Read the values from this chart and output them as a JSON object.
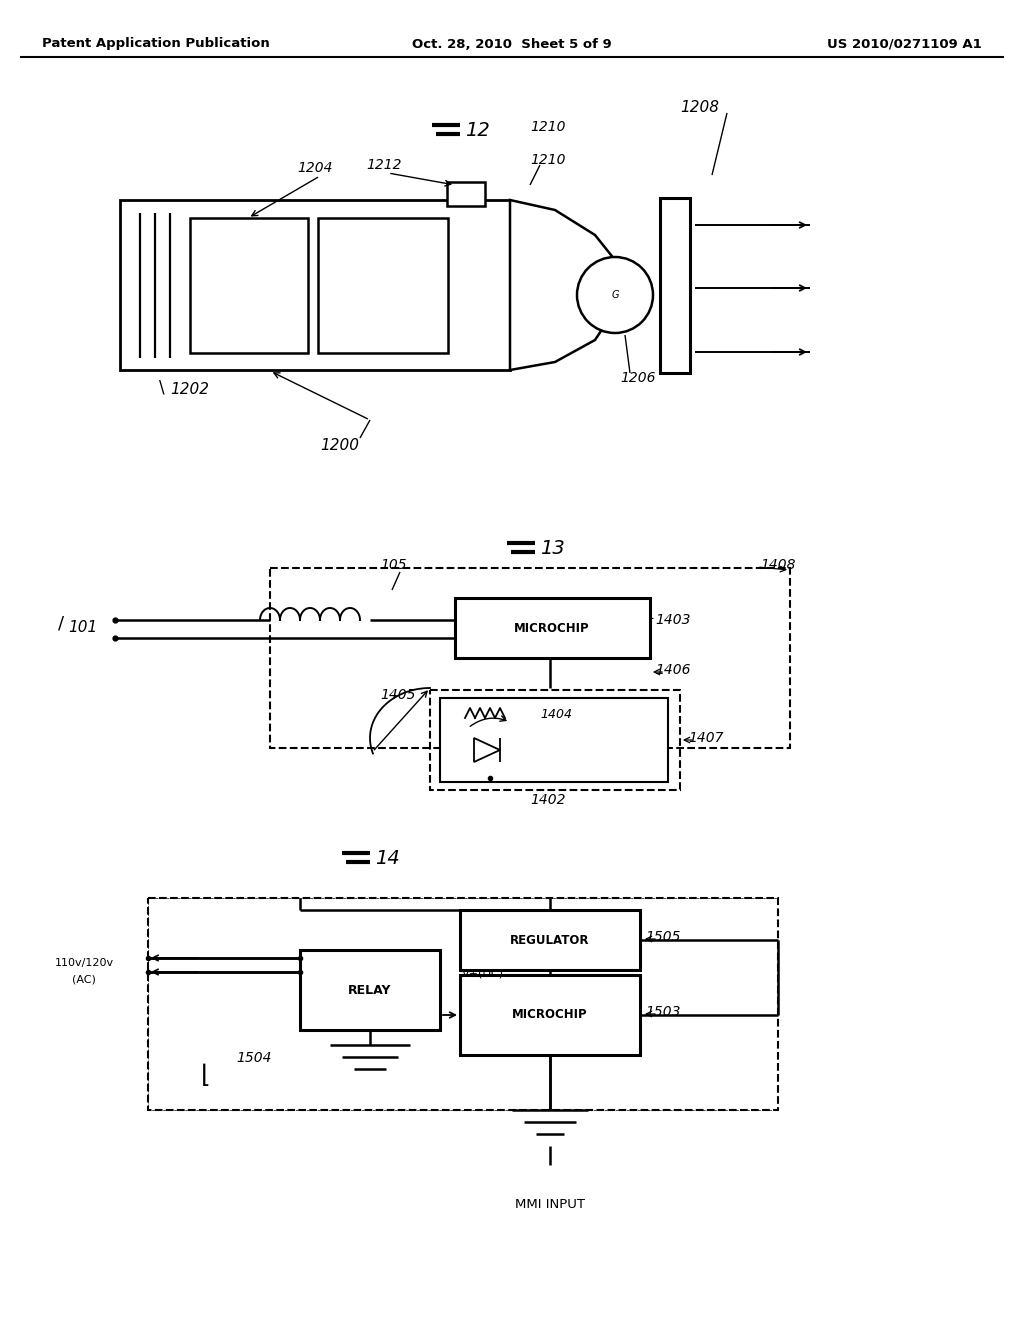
{
  "bg": "#ffffff",
  "hdr_left": "Patent Application Publication",
  "hdr_mid": "Oct. 28, 2010  Sheet 5 of 9",
  "hdr_right": "US 2010/0271109 A1"
}
